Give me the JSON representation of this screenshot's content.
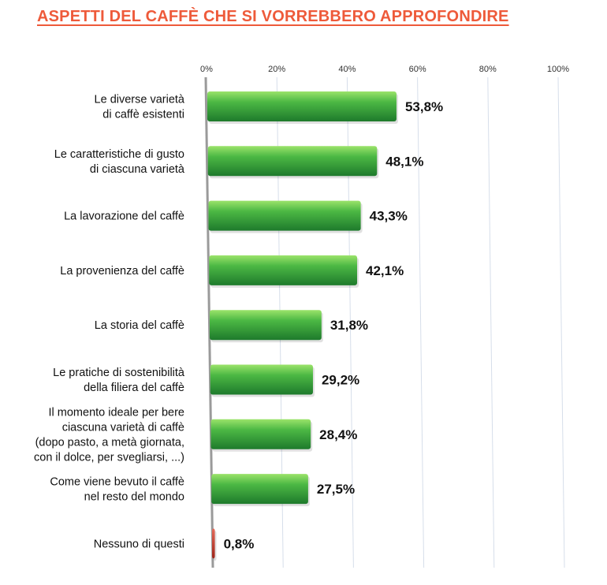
{
  "title": "ASPETTI DEL CAFFÈ CHE SI VORREBBERO APPROFONDIRE",
  "colors": {
    "title": "#ee5a3a",
    "bar": "#2e9a3a",
    "bar_highlight": "#8fdc62",
    "bar_none": "#c0392b",
    "grid": "#d6deea"
  },
  "chart_data": {
    "type": "bar",
    "orientation": "horizontal",
    "title": "ASPETTI DEL CAFFÈ CHE SI VORREBBERO APPROFONDIRE",
    "xlim": [
      0,
      100
    ],
    "ticks": [
      "0%",
      "20%",
      "40%",
      "60%",
      "80%",
      "100%"
    ],
    "tick_values": [
      0,
      20,
      40,
      60,
      80,
      100
    ],
    "grid": true,
    "categories": [
      [
        "Le diverse varietà",
        "di caffè esistenti"
      ],
      [
        "Le caratteristiche di gusto",
        "di ciascuna varietà"
      ],
      [
        "La lavorazione del caffè"
      ],
      [
        "La provenienza del caffè"
      ],
      [
        "La storia del caffè"
      ],
      [
        "Le pratiche di sostenibilità",
        "della filiera del caffè"
      ],
      [
        "Il momento ideale per bere",
        "ciascuna varietà di caffè",
        "(dopo pasto, a metà giornata,",
        "con il dolce, per svegliarsi, ...)"
      ],
      [
        "Come viene bevuto il caffè",
        "nel resto del mondo"
      ],
      [
        "Nessuno di questi"
      ]
    ],
    "values": [
      53.8,
      48.1,
      43.3,
      42.1,
      31.8,
      29.2,
      28.4,
      27.5,
      0.8
    ],
    "value_labels": [
      "53,8%",
      "48,1%",
      "43,3%",
      "42,1%",
      "31,8%",
      "29,2%",
      "28,4%",
      "27,5%",
      "0,8%"
    ]
  }
}
